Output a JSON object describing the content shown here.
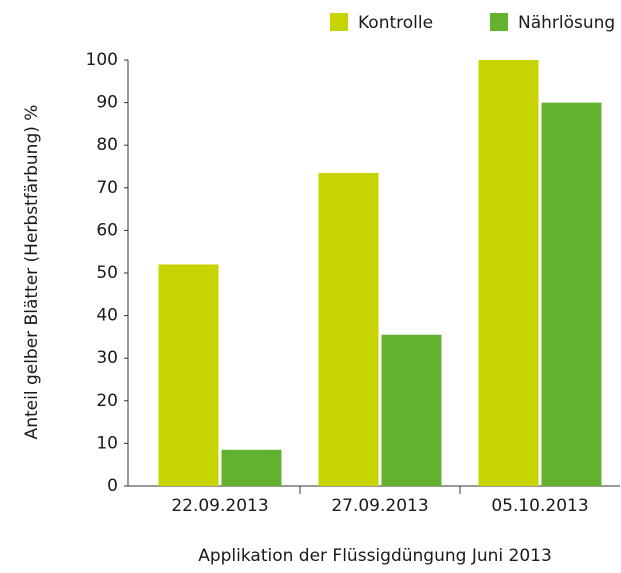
{
  "chart_data": {
    "type": "bar",
    "x_label": "Applikation der Flüssigdüngung Juni 2013",
    "y_label": "Anteil gelber Blätter (Herbstfärbung) %",
    "categories": [
      "22.09.2013",
      "27.09.2013",
      "05.10.2013"
    ],
    "series": [
      {
        "name": "Kontrolle",
        "color": "#c8d400",
        "values": [
          52,
          73.5,
          100
        ]
      },
      {
        "name": "Nährlösung",
        "color": "#62b22f",
        "values": [
          8.5,
          35.5,
          90
        ]
      }
    ],
    "ylim": [
      0,
      100
    ],
    "yticks": [
      0,
      10,
      20,
      30,
      40,
      50,
      60,
      70,
      80,
      90,
      100
    ],
    "grid": false,
    "legend": "top-right"
  }
}
